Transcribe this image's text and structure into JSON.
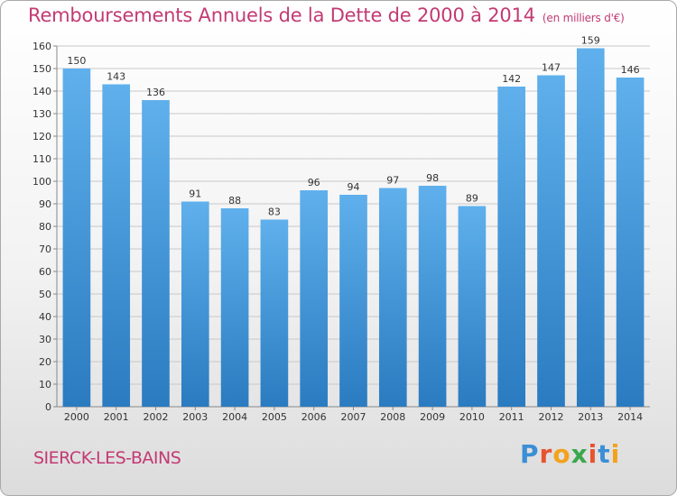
{
  "header": {
    "title": "Remboursements Annuels de la Dette de 2000 à 2014",
    "unit": "(en milliers d'€)"
  },
  "footer": {
    "city": "SIERCK-LES-BAINS",
    "logo_letters": [
      "P",
      "r",
      "o",
      "x",
      "i",
      "t",
      "i"
    ],
    "logo_colors": [
      "#3a8fd6",
      "#e8532f",
      "#f3a21b",
      "#3aa84a",
      "#e8532f",
      "#3a8fd6",
      "#f3a21b"
    ]
  },
  "colors": {
    "title": "#c33a73",
    "bar_top": "#5fb0ec",
    "bar_bottom": "#2a7bc0",
    "grid": "#c8c8c8"
  },
  "chart_data": {
    "type": "bar",
    "categories": [
      "2000",
      "2001",
      "2002",
      "2003",
      "2004",
      "2005",
      "2006",
      "2007",
      "2008",
      "2009",
      "2010",
      "2011",
      "2012",
      "2013",
      "2014"
    ],
    "values": [
      150,
      143,
      136,
      91,
      88,
      83,
      96,
      94,
      97,
      98,
      89,
      142,
      147,
      159,
      146
    ],
    "title": "Remboursements Annuels de la Dette de 2000 à 2014",
    "ylim": [
      0,
      160
    ],
    "yticks": [
      0,
      10,
      20,
      30,
      40,
      50,
      60,
      70,
      80,
      90,
      100,
      110,
      120,
      130,
      140,
      150,
      160
    ],
    "grid": true,
    "data_labels": true
  }
}
